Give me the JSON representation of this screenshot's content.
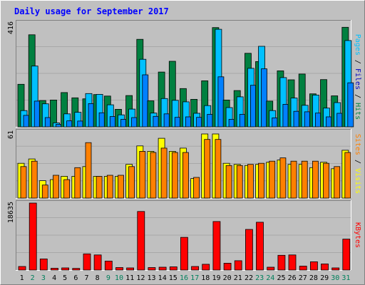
{
  "chart_data": {
    "type": "bar",
    "title": "Daily usage for September 2017",
    "colors": {
      "background": "#c0c0c0",
      "plot_background": "#c0c0c0",
      "title": "#0000ff",
      "axis_max": "#000000",
      "hits": "#008040",
      "hits_highlight": "#00c080",
      "files": "#00c0ff",
      "pages": "#0080ff",
      "visits": "#ffff00",
      "sites": "#ff8000",
      "kbytes": "#ff0000",
      "weekend_day": "#00805c",
      "weekday": "#000000"
    },
    "categories": [
      "1",
      "2",
      "3",
      "4",
      "5",
      "6",
      "7",
      "8",
      "9",
      "10",
      "11",
      "12",
      "13",
      "14",
      "15",
      "16",
      "17",
      "18",
      "19",
      "20",
      "21",
      "22",
      "23",
      "24",
      "25",
      "26",
      "27",
      "28",
      "29",
      "30",
      "31"
    ],
    "weekend_days": [
      "2",
      "3",
      "9",
      "10",
      "16",
      "17",
      "23",
      "24",
      "30",
      "31"
    ],
    "panels": [
      {
        "id": "hits",
        "max_label": "416",
        "ylim": [
          0,
          416
        ],
        "legend": [
          {
            "label": "Pages",
            "color": "#00c0ff"
          },
          {
            "label": "Files",
            "color": "#0000c0"
          },
          {
            "label": "Hits",
            "color": "#008040"
          }
        ],
        "separator": " / ",
        "series": [
          {
            "name": "Hits",
            "values": [
              170,
              368,
              105,
              107,
              137,
              116,
              112,
              129,
              123,
              70,
              125,
              350,
              104,
              219,
              262,
              153,
              110,
              184,
              397,
              107,
              145,
              294,
              261,
              103,
              224,
              188,
              211,
              132,
              189,
              124,
              398
            ]
          },
          {
            "name": "Files",
            "values": [
              65,
              243,
              92,
              16,
              52,
              58,
              133,
              130,
              88,
              48,
              71,
              270,
              55,
              113,
              106,
              100,
              54,
              85,
              390,
              77,
              120,
              234,
              322,
              65,
              197,
              115,
              86,
              127,
              75,
              97,
              345
            ]
          },
          {
            "name": "Pages",
            "values": [
              46,
              103,
              37,
              10,
              24,
              23,
              93,
              56,
              41,
              30,
              37,
              208,
              42,
              52,
              38,
              40,
              38,
              50,
              200,
              30,
              50,
              166,
              232,
              36,
              90,
              62,
              60,
              55,
              40,
              54,
              176
            ]
          }
        ]
      },
      {
        "id": "visits",
        "max_label": "61",
        "ylim": [
          0,
          61
        ],
        "legend": [
          {
            "label": "Sites",
            "color": "#ff8000"
          },
          {
            "label": "Visits",
            "color": "#ffff00"
          }
        ],
        "separator": " / ",
        "series": [
          {
            "name": "Visits",
            "values": [
              32,
              36,
              16,
              17,
              20,
              20,
              29,
              20,
              20,
              20,
              31,
              48,
              43,
              55,
              43,
              46,
              18,
              59,
              59,
              32,
              31,
              30,
              31,
              33,
              35,
              31,
              31,
              28,
              33,
              27,
              44
            ]
          },
          {
            "name": "Sites",
            "values": [
              29,
              34,
              12,
              21,
              17,
              28,
              51,
              20,
              21,
              21,
              29,
              43,
              42,
              46,
              42,
              42,
              19,
              54,
              54,
              30,
              30,
              31,
              32,
              34,
              37,
              34,
              34,
              34,
              32,
              29,
              42
            ]
          }
        ]
      },
      {
        "id": "kbytes",
        "max_label": "18635",
        "ylim": [
          0,
          18635
        ],
        "legend": [
          {
            "label": "KBytes",
            "color": "#ff0000"
          }
        ],
        "separator": "",
        "series": [
          {
            "name": "KBytes",
            "values": [
              1000,
              18635,
              3100,
              500,
              600,
              450,
              4500,
              4200,
              2500,
              700,
              600,
              16300,
              700,
              800,
              900,
              9100,
              1000,
              1600,
              13500,
              1900,
              2600,
              11300,
              13300,
              800,
              4100,
              4200,
              1100,
              2300,
              1700,
              600,
              8600
            ]
          }
        ]
      }
    ]
  }
}
